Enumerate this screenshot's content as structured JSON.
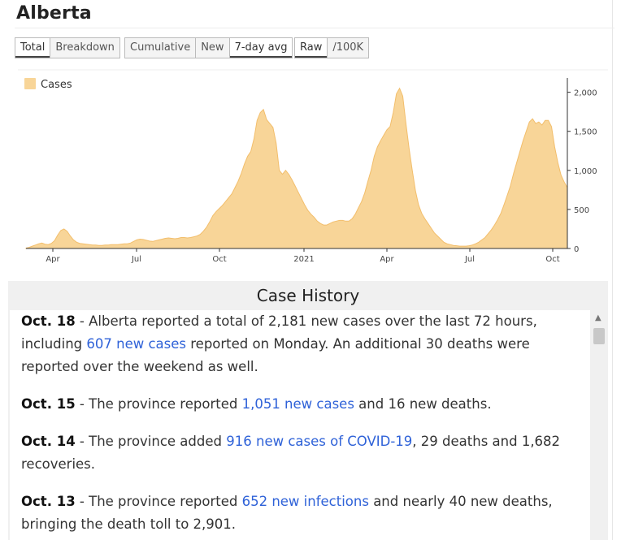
{
  "title": "Alberta",
  "toggles": {
    "view": [
      {
        "label": "Total",
        "active": true
      },
      {
        "label": "Breakdown",
        "active": false
      }
    ],
    "mode": [
      {
        "label": "Cumulative",
        "active": false
      },
      {
        "label": "New",
        "active": false
      },
      {
        "label": "7-day avg",
        "active": true
      }
    ],
    "scale": [
      {
        "label": "Raw",
        "active": true
      },
      {
        "label": "/100K",
        "active": false
      }
    ]
  },
  "chart_data": {
    "type": "area",
    "legend": "Cases",
    "color": "#f8d598",
    "line_color": "#f2be6c",
    "yticks": [
      0,
      500,
      1000,
      1500,
      2000
    ],
    "ytick_labels": [
      "0",
      "500",
      "1,000",
      "1,500",
      "2,000"
    ],
    "ylim": [
      0,
      2100
    ],
    "xticks": [
      "Apr",
      "Jul",
      "Oct",
      "2021",
      "Apr",
      "Jul",
      "Oct"
    ],
    "series": [
      {
        "values": [
          5,
          15,
          30,
          45,
          60,
          70,
          55,
          50,
          65,
          100,
          170,
          230,
          250,
          220,
          160,
          110,
          80,
          65,
          60,
          55,
          50,
          45,
          45,
          40,
          40,
          45,
          45,
          50,
          50,
          50,
          55,
          60,
          60,
          70,
          90,
          110,
          120,
          115,
          105,
          95,
          90,
          100,
          110,
          120,
          130,
          135,
          130,
          125,
          130,
          140,
          140,
          135,
          140,
          150,
          160,
          180,
          220,
          270,
          340,
          420,
          470,
          510,
          550,
          600,
          650,
          700,
          780,
          860,
          960,
          1080,
          1180,
          1240,
          1400,
          1640,
          1740,
          1780,
          1650,
          1600,
          1550,
          1350,
          1000,
          950,
          1000,
          950,
          880,
          800,
          720,
          640,
          560,
          490,
          440,
          400,
          350,
          320,
          300,
          300,
          320,
          340,
          350,
          360,
          360,
          350,
          350,
          380,
          440,
          520,
          600,
          710,
          860,
          1000,
          1180,
          1300,
          1380,
          1450,
          1520,
          1560,
          1740,
          1980,
          2050,
          1950,
          1600,
          1280,
          1000,
          740,
          560,
          450,
          380,
          320,
          260,
          200,
          160,
          120,
          80,
          60,
          50,
          40,
          35,
          30,
          30,
          30,
          35,
          45,
          60,
          80,
          110,
          140,
          190,
          240,
          300,
          370,
          450,
          560,
          680,
          800,
          960,
          1100,
          1240,
          1380,
          1500,
          1620,
          1660,
          1600,
          1620,
          1580,
          1640,
          1640,
          1560,
          1300,
          1100,
          940,
          850,
          780
        ]
      }
    ]
  },
  "history": {
    "title": "Case History",
    "entries": [
      {
        "date": "Oct. 18",
        "pre": " - Alberta reported a total of 2,181 new cases over the last 72 hours, including ",
        "link": "607 new cases",
        "post": " reported on Monday. An additional 30 deaths were reported over the weekend as well."
      },
      {
        "date": "Oct. 15",
        "pre": " - The province reported ",
        "link": "1,051 new cases",
        "post": " and 16 new deaths."
      },
      {
        "date": "Oct. 14",
        "pre": " - The province added ",
        "link": "916 new cases of COVID-19",
        "post": ", 29 deaths and 1,682 recoveries."
      },
      {
        "date": "Oct. 13",
        "pre": " - The province reported ",
        "link": "652 new infections",
        "post": " and nearly 40 new deaths, bringing the death toll to 2,901."
      }
    ]
  }
}
